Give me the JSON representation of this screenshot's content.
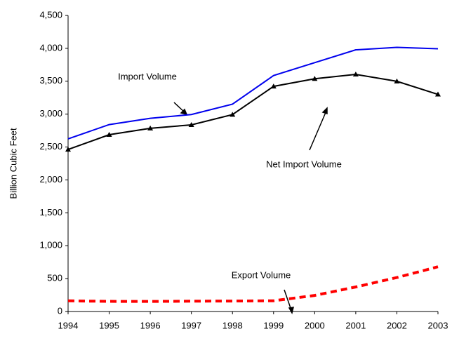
{
  "chart_data": {
    "type": "line",
    "y_label": "Billion Cubic Feet",
    "x": [
      1994,
      1995,
      1996,
      1997,
      1998,
      1999,
      2000,
      2001,
      2002,
      2003
    ],
    "xlim": [
      1994,
      2003
    ],
    "xticks": [
      1994,
      1995,
      1996,
      1997,
      1998,
      1999,
      2000,
      2001,
      2002,
      2003
    ],
    "ylim": [
      0,
      4500
    ],
    "yticks": [
      0,
      {
        "value": 500,
        "label": "500"
      },
      {
        "value": 1000,
        "label": "1,000"
      },
      {
        "value": 1500,
        "label": "1,500"
      },
      {
        "value": 2000,
        "label": "2,000"
      },
      {
        "value": 2500,
        "label": "2,500"
      },
      {
        "value": 3000,
        "label": "3,000"
      },
      {
        "value": 3500,
        "label": "3,500"
      },
      {
        "value": 4000,
        "label": "4,000"
      },
      {
        "value": 4500,
        "label": "4,500"
      }
    ],
    "grid": false,
    "series": [
      {
        "name": "Import Volume",
        "color": "#0000ee",
        "values": [
          2624,
          2841,
          2937,
          2994,
          3152,
          3586,
          3782,
          3977,
          4015,
          3994
        ]
      },
      {
        "name": "Net Import Volume",
        "color": "#000000",
        "values": [
          2462,
          2687,
          2784,
          2837,
          2993,
          3422,
          3538,
          3604,
          3499,
          3300
        ]
      },
      {
        "name": "Export Volume",
        "color": "#ff0000",
        "values": [
          162,
          154,
          153,
          157,
          159,
          163,
          244,
          373,
          516,
          680
        ]
      }
    ]
  }
}
